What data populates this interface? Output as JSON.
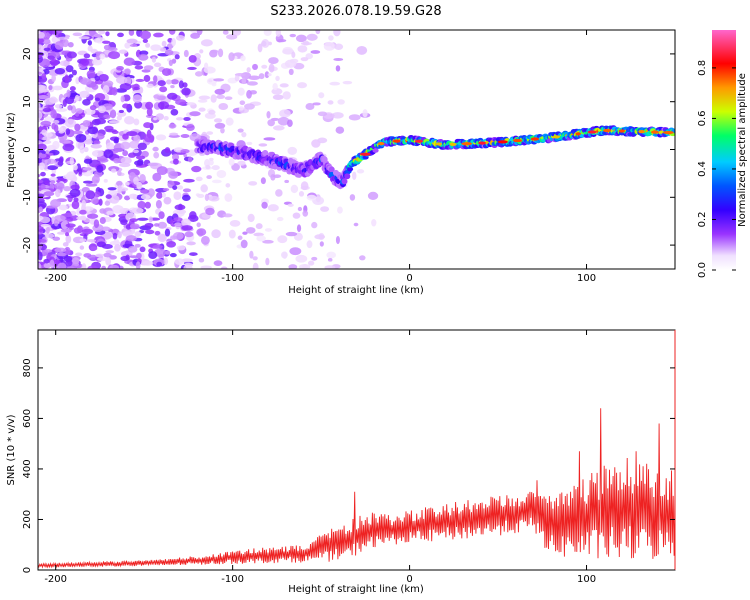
{
  "chart_data": [
    {
      "type": "heatmap",
      "title": "S233.2026.078.19.59.G28",
      "xlabel": "Height of straight line (km)",
      "ylabel": "Frequency (Hz)",
      "xlim": [
        -210,
        150
      ],
      "ylim": [
        -25,
        25
      ],
      "xticks": [
        -200,
        -100,
        0,
        100
      ],
      "yticks": [
        -20,
        -10,
        0,
        10,
        20
      ],
      "colorbar": {
        "label": "Normalized spectral amplitude",
        "range": [
          0,
          0.95
        ],
        "ticks": [
          0.0,
          0.2,
          0.4,
          0.6,
          0.8
        ],
        "colormap": [
          "#ffffff",
          "#e8c8ff",
          "#9933ff",
          "#3300ff",
          "#0066ff",
          "#00ccff",
          "#00ff66",
          "#ccff00",
          "#ff9900",
          "#ff0000",
          "#ff66cc"
        ]
      },
      "ridge": [
        {
          "x": -110,
          "y": 0.5
        },
        {
          "x": -90,
          "y": -1
        },
        {
          "x": -75,
          "y": -2.5
        },
        {
          "x": -60,
          "y": -4.5
        },
        {
          "x": -50,
          "y": -2
        },
        {
          "x": -45,
          "y": -5
        },
        {
          "x": -38,
          "y": -7
        },
        {
          "x": -33,
          "y": -3
        },
        {
          "x": -25,
          "y": -1
        },
        {
          "x": -15,
          "y": 1.5
        },
        {
          "x": 0,
          "y": 2
        },
        {
          "x": 20,
          "y": 1
        },
        {
          "x": 50,
          "y": 1.5
        },
        {
          "x": 80,
          "y": 2.5
        },
        {
          "x": 110,
          "y": 4
        },
        {
          "x": 150,
          "y": 3.5
        }
      ]
    },
    {
      "type": "line",
      "xlabel": "Height of straight line (km)",
      "ylabel": "SNR (10 * v/v)",
      "xlim": [
        -210,
        150
      ],
      "ylim": [
        0,
        950
      ],
      "xticks": [
        -200,
        -100,
        0,
        100
      ],
      "yticks": [
        0,
        200,
        400,
        600,
        800
      ],
      "series": [
        {
          "name": "SNR",
          "color": "#ee2222",
          "envelope": [
            {
              "x": -210,
              "low": 10,
              "high": 25
            },
            {
              "x": -150,
              "low": 15,
              "high": 40
            },
            {
              "x": -120,
              "low": 20,
              "high": 55
            },
            {
              "x": -90,
              "low": 25,
              "high": 85
            },
            {
              "x": -60,
              "low": 30,
              "high": 100
            },
            {
              "x": -35,
              "low": 35,
              "high": 200
            },
            {
              "x": -25,
              "low": 80,
              "high": 230
            },
            {
              "x": -10,
              "low": 100,
              "high": 220
            },
            {
              "x": 10,
              "low": 110,
              "high": 250
            },
            {
              "x": 30,
              "low": 120,
              "high": 280
            },
            {
              "x": 55,
              "low": 140,
              "high": 300
            },
            {
              "x": 70,
              "low": 150,
              "high": 320
            },
            {
              "x": 80,
              "low": 50,
              "high": 300
            },
            {
              "x": 100,
              "low": 40,
              "high": 380
            },
            {
              "x": 120,
              "low": 30,
              "high": 450
            },
            {
              "x": 150,
              "low": 40,
              "high": 400
            }
          ],
          "peaks": [
            {
              "x": -31,
              "y": 310
            },
            {
              "x": 72,
              "y": 355
            },
            {
              "x": 96,
              "y": 470
            },
            {
              "x": 108,
              "y": 640
            },
            {
              "x": 128,
              "y": 470
            },
            {
              "x": 141,
              "y": 580
            }
          ]
        }
      ]
    }
  ]
}
